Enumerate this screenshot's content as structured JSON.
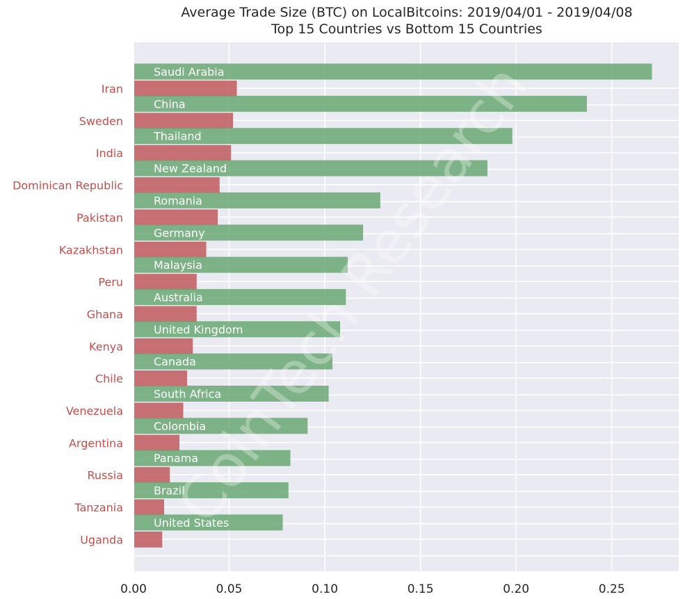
{
  "chart_data": {
    "type": "bar",
    "orientation": "horizontal",
    "title": "Average Trade Size (BTC) on LocalBitcoins: 2019/04/01 - 2019/04/08",
    "subtitle": "Top 15 Countries vs Bottom 15 Countries",
    "xlabel": "",
    "ylabel": "",
    "xlim": [
      0,
      0.285
    ],
    "xticks": [
      "0.00",
      "0.05",
      "0.10",
      "0.15",
      "0.20",
      "0.25"
    ],
    "grid": true,
    "watermark": "CoinTech Research",
    "series": [
      {
        "name": "Top 15 Countries",
        "color": "#6aa874",
        "label_color": "#ffffff",
        "categories": [
          "Saudi Arabia",
          "China",
          "Thailand",
          "New Zealand",
          "Romania",
          "Germany",
          "Malaysia",
          "Australia",
          "United Kingdom",
          "Canada",
          "South Africa",
          "Colombia",
          "Panama",
          "Brazil",
          "United States"
        ],
        "values": [
          0.271,
          0.237,
          0.198,
          0.185,
          0.129,
          0.12,
          0.112,
          0.111,
          0.108,
          0.104,
          0.102,
          0.091,
          0.082,
          0.081,
          0.078
        ]
      },
      {
        "name": "Bottom 15 Countries",
        "color": "#c05a5e",
        "label_color": "#c0504d",
        "categories": [
          "Iran",
          "Sweden",
          "India",
          "Dominican Republic",
          "Pakistan",
          "Kazakhstan",
          "Peru",
          "Ghana",
          "Kenya",
          "Chile",
          "Venezuela",
          "Argentina",
          "Russia",
          "Tanzania",
          "Uganda"
        ],
        "values": [
          0.054,
          0.052,
          0.051,
          0.045,
          0.044,
          0.038,
          0.033,
          0.033,
          0.031,
          0.028,
          0.026,
          0.024,
          0.019,
          0.016,
          0.015
        ]
      }
    ]
  }
}
